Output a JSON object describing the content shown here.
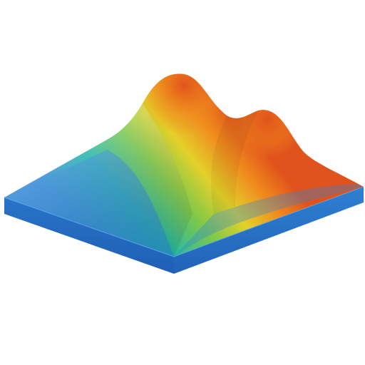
{
  "illustration": {
    "icon": "surface-plot-icon",
    "colors": {
      "base_top": "#2e86d6",
      "base_front": "#1f5fb5",
      "base_side": "#2874c8",
      "low": "#2e86d6",
      "mid_low": "#1fb7a8",
      "mid": "#7cc84a",
      "mid_high": "#e3d12a",
      "high": "#f08a1e",
      "peak": "#e0521b"
    }
  }
}
